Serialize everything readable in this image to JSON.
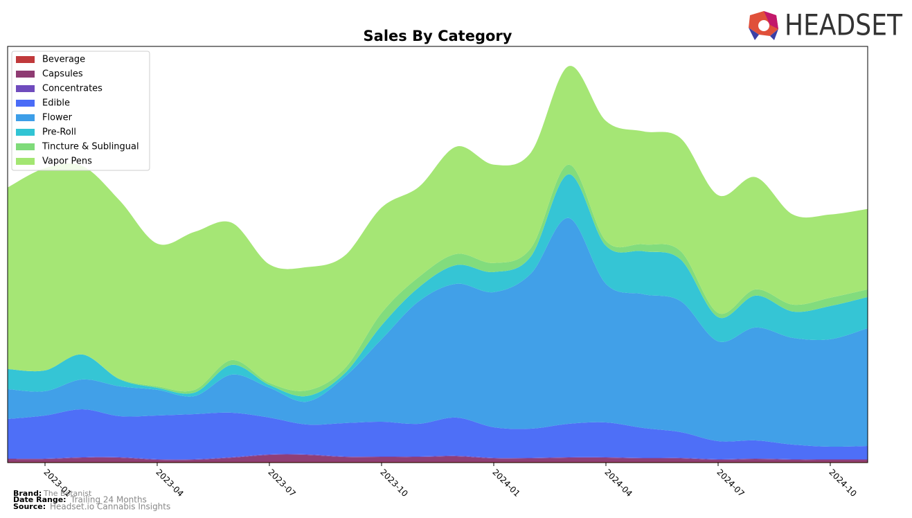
{
  "chart_data": {
    "type": "stacked_area",
    "title": "Sales By Category",
    "logo": "HEADSET",
    "categories": [
      null,
      "2023-01",
      null,
      null,
      "2023-04",
      null,
      null,
      "2023-07",
      null,
      null,
      "2023-10",
      null,
      null,
      "2024-01",
      null,
      null,
      "2024-04",
      null,
      null,
      "2024-07",
      null,
      null,
      "2024-10",
      null
    ],
    "legend": "upper left",
    "series": [
      {
        "name": "Beverage",
        "color": "#c0393b",
        "values": [
          1,
          1,
          1,
          1,
          1,
          1,
          1,
          1,
          1,
          1,
          1,
          1,
          1,
          1,
          1,
          1,
          1,
          1,
          1,
          1,
          1,
          1,
          1,
          1
        ]
      },
      {
        "name": "Capsules",
        "color": "#8e3b72",
        "values": [
          4,
          4,
          6,
          6,
          3,
          3,
          6,
          10,
          10,
          7,
          7,
          7,
          8,
          5,
          5,
          6,
          6,
          5,
          5,
          3,
          4,
          3,
          3,
          3
        ]
      },
      {
        "name": "Concentrates",
        "color": "#6f4bbd",
        "values": [
          1,
          1,
          1,
          1,
          1,
          1,
          1,
          1,
          1,
          1,
          1,
          1,
          1,
          1,
          1,
          1,
          1,
          1,
          1,
          1,
          1,
          1,
          1,
          1
        ]
      },
      {
        "name": "Edible",
        "color": "#4a6cf7",
        "values": [
          57,
          62,
          69,
          59,
          63,
          65,
          64,
          53,
          43,
          48,
          50,
          47,
          55,
          44,
          42,
          48,
          50,
          43,
          37,
          26,
          26,
          21,
          18,
          19
        ]
      },
      {
        "name": "Flower",
        "color": "#3d9ee8",
        "values": [
          43,
          35,
          43,
          43,
          37,
          26,
          55,
          43,
          33,
          66,
          119,
          177,
          193,
          195,
          224,
          297,
          200,
          193,
          189,
          144,
          163,
          154,
          155,
          170
        ]
      },
      {
        "name": "Pre-Roll",
        "color": "#31c4d4",
        "values": [
          29,
          30,
          36,
          10,
          3,
          5,
          14,
          4,
          8,
          5,
          20,
          20,
          27,
          29,
          25,
          63,
          55,
          62,
          60,
          35,
          46,
          38,
          48,
          45
        ]
      },
      {
        "name": "Tincture & Sublingual",
        "color": "#7fdb7a",
        "values": [
          0,
          0,
          0,
          1,
          2,
          4,
          7,
          3,
          8,
          7,
          18,
          15,
          16,
          13,
          12,
          14,
          7,
          10,
          12,
          6,
          9,
          10,
          12,
          11
        ]
      },
      {
        "name": "Vapor Pens",
        "color": "#a3e672",
        "values": [
          262,
          292,
          272,
          257,
          206,
          228,
          198,
          171,
          178,
          163,
          152,
          130,
          155,
          142,
          138,
          142,
          173,
          163,
          163,
          170,
          162,
          130,
          120,
          116
        ]
      }
    ],
    "footer": {
      "brand_label": "Brand:",
      "brand": "The Botanist",
      "range_label": "Date Range:",
      "range": "Trailing 24 Months",
      "source_label": "Source:",
      "source": "Headset.io Cannabis Insights"
    }
  }
}
